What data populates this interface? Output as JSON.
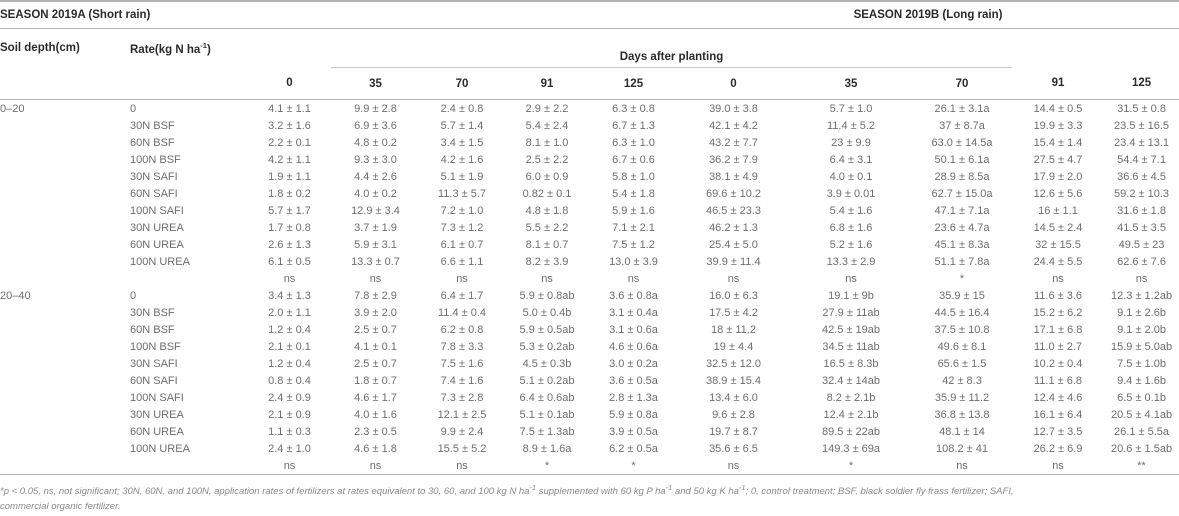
{
  "header": {
    "season_a": "SEASON 2019A (Short rain)",
    "season_b": "SEASON 2019B (Long rain)",
    "soil_depth": "Soil depth(cm)",
    "rate_parts": [
      {
        "text": "Rate(kg N ha"
      },
      {
        "sup": "-1"
      },
      {
        "text": ")"
      }
    ],
    "days_after_planting": "Days after planting",
    "day_cols": [
      "0",
      "35",
      "70",
      "91",
      "125",
      "0",
      "35",
      "70",
      "91",
      "125"
    ]
  },
  "body": {
    "groups": [
      {
        "depth": "0–20",
        "rows": [
          {
            "rate": "0",
            "values": [
              "4.1 ± 1.1",
              "9.9 ± 2.8",
              "2.4 ± 0.8",
              "2.9 ± 2.2",
              "6.3 ± 0.8",
              "39.0 ± 3.8",
              "5.7 ± 1.0",
              "26.1 ± 3.1a",
              "14.4 ± 0.5",
              "31.5 ± 0.8"
            ]
          },
          {
            "rate": "30N BSF",
            "values": [
              "3.2 ± 1.6",
              "6.9 ± 3.6",
              "5.7 ± 1.4",
              "5.4 ± 2.4",
              "6.7 ± 1.3",
              "42.1 ± 4.2",
              "11.4 ± 5.2",
              "37 ± 8.7a",
              "19.9 ± 3.3",
              "23.5 ± 16.5"
            ]
          },
          {
            "rate": "60N BSF",
            "values": [
              "2.2 ± 0.1",
              "4.8 ± 0.2",
              "3.4 ± 1.5",
              "8.1 ± 1.0",
              "6.3 ± 1.0",
              "43.2 ± 7.7",
              "23 ± 9.9",
              "63.0 ± 14.5a",
              "15.4 ± 1.4",
              "23.4 ± 13.1"
            ]
          },
          {
            "rate": "100N BSF",
            "values": [
              "4.2 ± 1.1",
              "9.3 ± 3.0",
              "4.2 ± 1.6",
              "2.5 ± 2.2",
              "6.7 ± 0.6",
              "36.2 ± 7.9",
              "6.4 ± 3.1",
              "50.1 ± 6.1a",
              "27.5 ± 4.7",
              "54.4 ± 7.1"
            ]
          },
          {
            "rate": "30N SAFI",
            "values": [
              "1.9 ± 1.1",
              "4.4 ± 2.6",
              "5.1 ± 1.9",
              "6.0 ± 0.9",
              "5.8 ± 1.0",
              "38.1 ± 4.9",
              "4.0 ± 0.1",
              "28.9 ± 8.5a",
              "17.9 ± 2.0",
              "36.6 ± 4.5"
            ]
          },
          {
            "rate": "60N SAFI",
            "values": [
              "1.8 ± 0.2",
              "4.0 ± 0.2",
              "11.3 ± 5.7",
              "0.82 ± 0.1",
              "5.4 ± 1.8",
              "69.6 ± 10.2",
              "3.9 ± 0.01",
              "62.7 ± 15.0a",
              "12.6 ± 5.6",
              "59.2 ± 10.3"
            ]
          },
          {
            "rate": "100N SAFI",
            "values": [
              "5.7 ± 1.7",
              "12.9 ± 3.4",
              "7.2 ± 1.0",
              "4.8 ± 1.8",
              "5.9 ± 1.6",
              "46.5 ± 23.3",
              "5.4 ± 1.6",
              "47.1 ± 7.1a",
              "16 ± 1.1",
              "31.6 ± 1.8"
            ]
          },
          {
            "rate": "30N UREA",
            "values": [
              "1.7 ± 0.8",
              "3.7 ± 1.9",
              "7.3 ± 1.2",
              "5.5 ± 2.2",
              "7.1 ± 2.1",
              "46.2 ± 1.3",
              "6.8 ± 1.6",
              "23.6 ± 4.7a",
              "14.5 ± 2.4",
              "41.5 ± 3.5"
            ]
          },
          {
            "rate": "60N UREA",
            "values": [
              "2.6 ± 1.3",
              "5.9 ± 3.1",
              "6.1 ± 0.7",
              "8.1 ± 0.7",
              "7.5 ± 1.2",
              "25.4 ± 5.0",
              "5.2 ± 1.6",
              "45.1 ± 8.3a",
              "32 ± 15.5",
              "49.5 ± 23"
            ]
          },
          {
            "rate": "100N UREA",
            "values": [
              "6.1 ± 0.5",
              "13.3 ± 0.7",
              "6.6 ± 1.1",
              "8.2 ± 3.9",
              "13.0 ± 3.9",
              "39.9 ± 11.4",
              "13.3 ± 2.9",
              "51.1 ± 7.8a",
              "24.4 ± 5.5",
              "62.6 ± 7.6"
            ]
          }
        ],
        "significance": [
          "ns",
          "ns",
          "ns",
          "ns",
          "ns",
          "ns",
          "ns",
          "*",
          "ns",
          "ns"
        ]
      },
      {
        "depth": "20–40",
        "rows": [
          {
            "rate": "0",
            "values": [
              "3.4 ± 1.3",
              "7.8 ± 2.9",
              "6.4 ± 1.7",
              "5.9 ± 0.8ab",
              "3.6 ± 0.8a",
              "16.0 ± 6.3",
              "19.1 ± 9b",
              "35.9 ± 15",
              "11.6 ± 3.6",
              "12.3 ± 1.2ab"
            ]
          },
          {
            "rate": "30N BSF",
            "values": [
              "2.0 ± 1.1",
              "3.9 ± 2.0",
              "11.4 ± 0.4",
              "5.0 ± 0.4b",
              "3.1 ± 0.4a",
              "17.5 ± 4.2",
              "27.9 ± 11ab",
              "44.5 ± 16.4",
              "15.2 ± 6.2",
              "9.1 ± 2.6b"
            ]
          },
          {
            "rate": "60N BSF",
            "values": [
              "1.2 ± 0.4",
              "2.5 ± 0.7",
              "6.2 ± 0.8",
              "5.9 ± 0.5ab",
              "3.1 ± 0.6a",
              "18 ± 11.2",
              "42.5 ± 19ab",
              "37.5 ± 10.8",
              "17.1 ± 6.8",
              "9.1 ± 2.0b"
            ]
          },
          {
            "rate": "100N BSF",
            "values": [
              "2.1 ± 0.1",
              "4.1 ± 0.1",
              "7.8 ± 3.3",
              "5.3 ± 0.2ab",
              "4.6 ± 0.6a",
              "19 ± 4.4",
              "34.5 ± 11ab",
              "49.6 ± 8.1",
              "11.0 ± 2.7",
              "15.9 ± 5.0ab"
            ]
          },
          {
            "rate": "30N SAFI",
            "values": [
              "1.2 ± 0.4",
              "2.5 ± 0.7",
              "7.5 ± 1.6",
              "4.5 ± 0.3b",
              "3.0 ± 0.2a",
              "32.5 ± 12.0",
              "16.5 ± 8.3b",
              "65.6 ± 1.5",
              "10.2 ± 0.4",
              "7.5 ± 1.0b"
            ]
          },
          {
            "rate": "60N SAFI",
            "values": [
              "0.8 ± 0.4",
              "1.8 ± 0.7",
              "7.4 ± 1.6",
              "5.1 ± 0.2ab",
              "3.6 ± 0.5a",
              "38.9 ± 15.4",
              "32.4 ± 14ab",
              "42 ± 8.3",
              "11.1 ± 6.8",
              "9.4 ± 1.6b"
            ]
          },
          {
            "rate": "100N SAFI",
            "values": [
              "2.4 ± 0.9",
              "4.6 ± 1.7",
              "7.3 ± 2.8",
              "6.4 ± 0.6ab",
              "2.8 ± 1.3a",
              "13.4 ± 6.0",
              "8.2 ± 2.1b",
              "35.9 ± 11.2",
              "12.4 ± 4.6",
              "6.5 ± 0.1b"
            ]
          },
          {
            "rate": "30N UREA",
            "values": [
              "2.1 ± 0.9",
              "4.0 ± 1.6",
              "12.1 ± 2.5",
              "5.1 ± 0.1ab",
              "5.9 ± 0.8a",
              "9.6 ± 2.8",
              "12.4 ± 2.1b",
              "36.8 ± 13.8",
              "16.1 ± 6.4",
              "20.5 ± 4.1ab"
            ]
          },
          {
            "rate": "60N UREA",
            "values": [
              "1.1 ± 0.3",
              "2.3 ± 0.5",
              "9.9 ± 2.4",
              "7.5 ± 1.3ab",
              "3.9 ± 0.5a",
              "19.7 ± 8.7",
              "89.5 ± 22ab",
              "48.1 ± 14",
              "12.7 ± 3.5",
              "26.1 ± 5.5a"
            ]
          },
          {
            "rate": "100N UREA",
            "values": [
              "2.4 ± 1.0",
              "4.6 ± 1.8",
              "15.5 ± 5.2",
              "8.9 ± 1.6a",
              "6.2 ± 0.5a",
              "35.6 ± 6.5",
              "149.3 ± 69a",
              "108.2 ± 41",
              "26.2 ± 6.9",
              "20.6 ± 1.5ab"
            ]
          }
        ],
        "significance": [
          "ns",
          "ns",
          "ns",
          "*",
          "*",
          "ns",
          "*",
          "ns",
          "ns",
          "**"
        ]
      }
    ]
  },
  "footnote": {
    "line1_parts": [
      {
        "text": "*p < 0.05, ns, not significant; 30N, 60N, and 100N, application rates of fertilizers at rates equivalent to 30, 60, and 100 kg N ha"
      },
      {
        "sup": "-1"
      },
      {
        "text": " supplemented with 60 kg P ha"
      },
      {
        "sup": "-1"
      },
      {
        "text": " and 50 kg K ha"
      },
      {
        "sup": "-1"
      },
      {
        "text": "; 0, control treatment; BSF, black soldier fly frass fertilizer; SAFI,"
      }
    ],
    "line2": "commercial organic fertilizer."
  }
}
